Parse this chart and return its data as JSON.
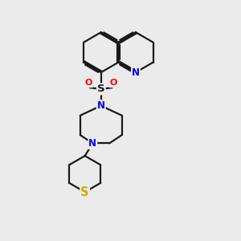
{
  "background_color": "#ebebeb",
  "bond_color": "#1a1a1a",
  "N_color": "#0000ff",
  "S_color": "#ccaa00",
  "O_color": "#ff0000",
  "line_width": 1.6,
  "font_size_atom": 8.5,
  "xlim": [
    1.0,
    7.5
  ],
  "ylim": [
    0.5,
    9.0
  ],
  "figsize": [
    3.0,
    3.0
  ],
  "dpi": 100
}
